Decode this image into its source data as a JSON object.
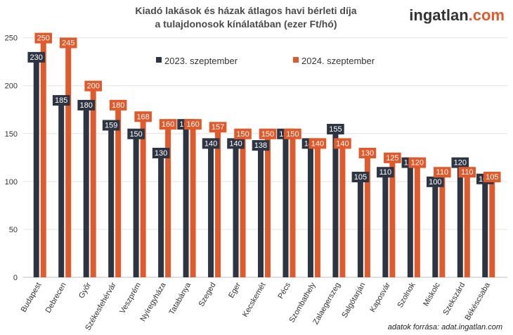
{
  "chart_data": {
    "type": "bar",
    "title_lines": [
      "Kiadó lakások és házak átlagos havi bérleti díja",
      "a tulajdonosok kínálatában (ezer Ft/hó)"
    ],
    "categories": [
      "Budapest",
      "Debrecen",
      "Győr",
      "Székesfehérvár",
      "Veszprém",
      "Nyíregyháza",
      "Tatabánya",
      "Szeged",
      "Eger",
      "Kecskemét",
      "Pécs",
      "Szombathely",
      "Zalaegerszeg",
      "Salgótarján",
      "Kaposvár",
      "Szolnok",
      "Miskolc",
      "Szekszárd",
      "Békéscsaba"
    ],
    "series": [
      {
        "name": "2023. szeptember",
        "color": "#2d3542",
        "values": [
          230,
          185,
          180,
          159,
          150,
          130,
          160,
          140,
          140,
          138,
          150,
          140,
          155,
          105,
          110,
          120,
          100,
          120,
          103
        ]
      },
      {
        "name": "2024. szeptember",
        "color": "#e05a2b",
        "values": [
          250,
          245,
          200,
          180,
          168,
          160,
          160,
          157,
          150,
          150,
          150,
          140,
          140,
          130,
          125,
          120,
          110,
          110,
          105
        ]
      }
    ],
    "ylim": [
      0,
      260
    ],
    "yticks": [
      0,
      50,
      100,
      150,
      200,
      250
    ],
    "grid": true,
    "legend": "top"
  },
  "brand": {
    "name": "ingatlan",
    "suffix": ".com",
    "dot_color": "#e05a2b"
  },
  "source": "adatok forrása: adat.ingatlan.com"
}
